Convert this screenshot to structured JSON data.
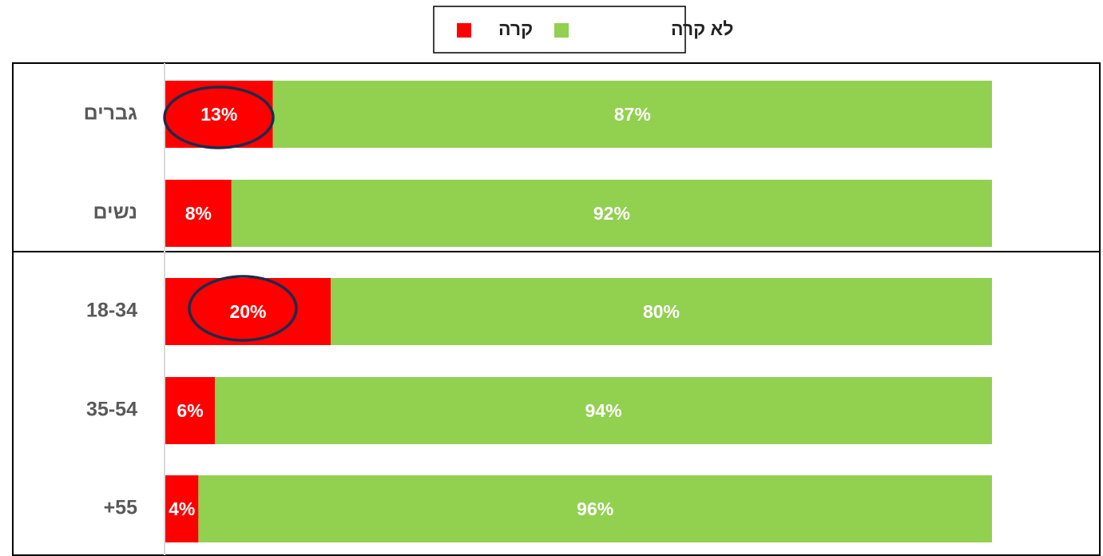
{
  "chart_data": {
    "type": "bar",
    "orientation": "horizontal",
    "stacked": true,
    "legend": "top",
    "categories": [
      "גברים",
      "נשים",
      "18-34",
      "35-54",
      "+55"
    ],
    "xlim": [
      0,
      100
    ],
    "series": [
      {
        "name": "קרה",
        "color": "#ff0000",
        "values": [
          13,
          8,
          20,
          6,
          4
        ],
        "value_labels": [
          "13%",
          "8%",
          "20%",
          "6%",
          "4%"
        ]
      },
      {
        "name": "לא קרה",
        "color": "#92d050",
        "values": [
          87,
          92,
          80,
          94,
          96
        ],
        "value_labels": [
          "87%",
          "92%",
          "80%",
          "94%",
          "96%"
        ]
      }
    ]
  }
}
